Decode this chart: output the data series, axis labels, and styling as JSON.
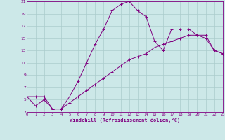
{
  "xlabel": "Windchill (Refroidissement éolien,°C)",
  "bg_color": "#cce8e8",
  "grid_color": "#aacccc",
  "line_color": "#800080",
  "curve1_x": [
    0,
    1,
    2,
    3,
    4,
    5,
    6,
    7,
    8,
    9,
    10,
    11,
    12,
    13,
    14,
    15,
    16,
    17,
    18,
    19,
    20,
    21,
    22,
    23
  ],
  "curve1_y": [
    5.5,
    4.0,
    5.0,
    3.5,
    3.5,
    5.5,
    8.0,
    11.0,
    14.0,
    16.5,
    19.5,
    20.5,
    21.0,
    19.5,
    18.5,
    14.5,
    13.0,
    16.5,
    16.5,
    16.5,
    15.5,
    15.0,
    13.0,
    12.5
  ],
  "curve2_x": [
    0,
    1,
    2,
    3,
    4,
    5,
    6,
    7,
    8,
    9,
    10,
    11,
    12,
    13,
    14,
    15,
    16,
    17,
    18,
    19,
    20,
    21,
    22,
    23
  ],
  "curve2_y": [
    5.5,
    5.5,
    5.5,
    3.5,
    3.5,
    4.5,
    5.5,
    6.5,
    7.5,
    8.5,
    9.5,
    10.5,
    11.5,
    12.0,
    12.5,
    13.5,
    14.0,
    14.5,
    15.0,
    15.5,
    15.5,
    15.5,
    13.0,
    12.5
  ],
  "xmin": 0,
  "xmax": 23,
  "ymin": 3,
  "ymax": 21,
  "yticks": [
    3,
    5,
    7,
    9,
    11,
    13,
    15,
    17,
    19,
    21
  ]
}
